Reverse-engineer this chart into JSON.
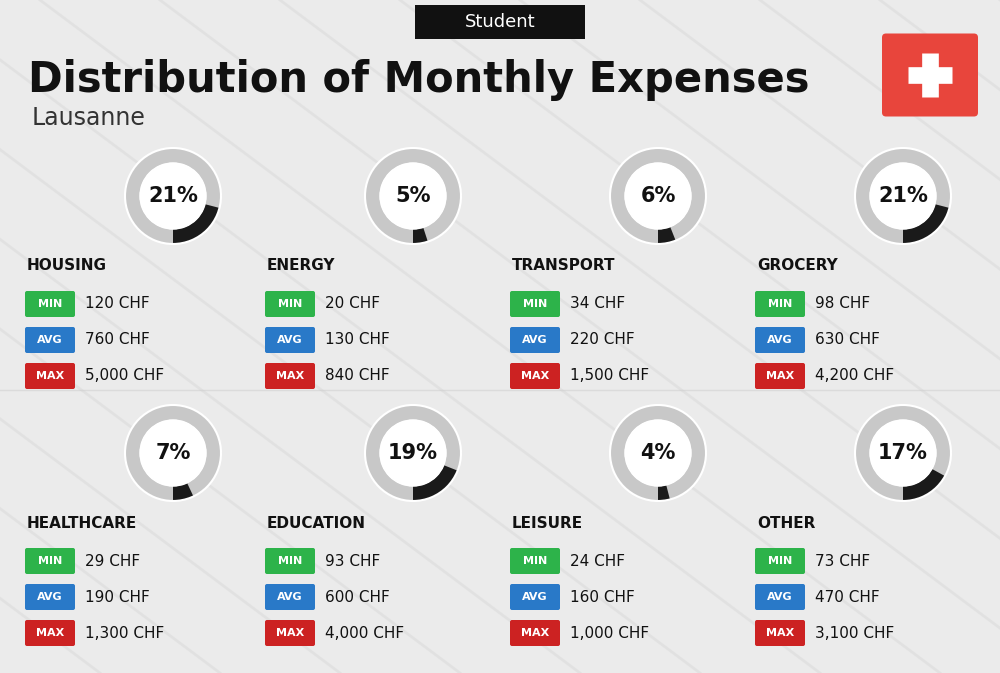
{
  "title": "Distribution of Monthly Expenses",
  "subtitle": "Student",
  "location": "Lausanne",
  "background_color": "#ebebeb",
  "title_color": "#111111",
  "categories": [
    {
      "name": "HOUSING",
      "pct": 21,
      "min_val": "120 CHF",
      "avg_val": "760 CHF",
      "max_val": "5,000 CHF",
      "row": 0,
      "col": 0
    },
    {
      "name": "ENERGY",
      "pct": 5,
      "min_val": "20 CHF",
      "avg_val": "130 CHF",
      "max_val": "840 CHF",
      "row": 0,
      "col": 1
    },
    {
      "name": "TRANSPORT",
      "pct": 6,
      "min_val": "34 CHF",
      "avg_val": "220 CHF",
      "max_val": "1,500 CHF",
      "row": 0,
      "col": 2
    },
    {
      "name": "GROCERY",
      "pct": 21,
      "min_val": "98 CHF",
      "avg_val": "630 CHF",
      "max_val": "4,200 CHF",
      "row": 0,
      "col": 3
    },
    {
      "name": "HEALTHCARE",
      "pct": 7,
      "min_val": "29 CHF",
      "avg_val": "190 CHF",
      "max_val": "1,300 CHF",
      "row": 1,
      "col": 0
    },
    {
      "name": "EDUCATION",
      "pct": 19,
      "min_val": "93 CHF",
      "avg_val": "600 CHF",
      "max_val": "4,000 CHF",
      "row": 1,
      "col": 1
    },
    {
      "name": "LEISURE",
      "pct": 4,
      "min_val": "24 CHF",
      "avg_val": "160 CHF",
      "max_val": "1,000 CHF",
      "row": 1,
      "col": 2
    },
    {
      "name": "OTHER",
      "pct": 17,
      "min_val": "73 CHF",
      "avg_val": "470 CHF",
      "max_val": "3,100 CHF",
      "row": 1,
      "col": 3
    }
  ],
  "min_color": "#2db34a",
  "avg_color": "#2979c8",
  "max_color": "#cc2222",
  "label_color": "#ffffff",
  "swiss_cross_bg": "#e8453c",
  "donut_bg": "#c8c8c8",
  "donut_fg": "#1a1a1a",
  "stripe_color": "#dedede"
}
